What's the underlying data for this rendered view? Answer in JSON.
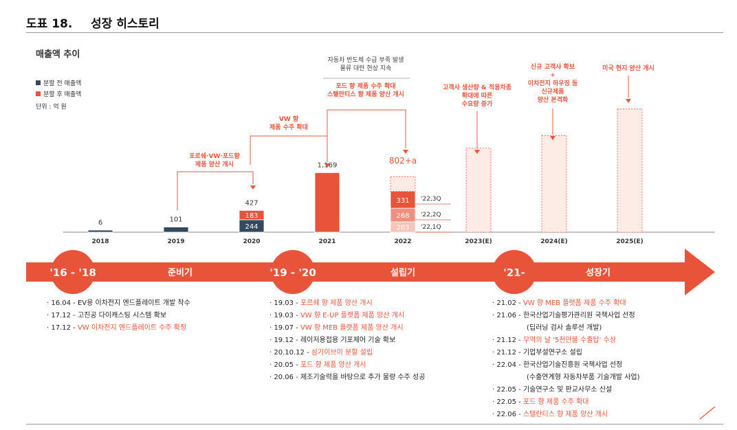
{
  "header": {
    "figure_no": "도표 18.",
    "title": "성장 히스토리"
  },
  "chart_data": {
    "type": "bar",
    "title": "매출액 추이",
    "legend": [
      {
        "name": "분할 전 매출액",
        "color": "#34495e"
      },
      {
        "name": "분할 후 매출액",
        "color": "#e8543a"
      }
    ],
    "unit": "단위 : 억 원",
    "categories": [
      "2018",
      "2019",
      "2020",
      "2021",
      "2022",
      "2023(E)",
      "2024(E)",
      "2025(E)"
    ],
    "totals": [
      "6",
      "101",
      "427",
      "1,169",
      "802+a",
      "",
      "",
      ""
    ],
    "segments": [
      {
        "cat": "2018",
        "color": "dark",
        "value": 6,
        "label": ""
      },
      {
        "cat": "2019",
        "color": "dark",
        "value": 101,
        "label": ""
      },
      {
        "cat": "2020",
        "color": "dark",
        "value": 244,
        "label": "244"
      },
      {
        "cat": "2020",
        "color": "red",
        "value": 183,
        "label": "183"
      },
      {
        "cat": "2021",
        "color": "red",
        "value": 1169,
        "label": ""
      },
      {
        "cat": "2022",
        "color": "q1",
        "value": 203,
        "label": "203"
      },
      {
        "cat": "2022",
        "color": "q2",
        "value": 268,
        "label": "268"
      },
      {
        "cat": "2022",
        "color": "q3",
        "value": 331,
        "label": "331"
      },
      {
        "cat": "2022",
        "color": "future",
        "value": 290,
        "label": ""
      },
      {
        "cat": "2023(E)",
        "color": "future",
        "value": 1650,
        "label": ""
      },
      {
        "cat": "2024(E)",
        "color": "future",
        "value": 1900,
        "label": ""
      },
      {
        "cat": "2025(E)",
        "color": "future",
        "value": 2420,
        "label": ""
      }
    ],
    "quarter_labels": [
      "'22,3Q",
      "'22,2Q",
      "'22,1Q"
    ],
    "annotations": [
      {
        "target": "2020",
        "lines": [
          "포르쉐·VW·포드향",
          "제품 양산 개시"
        ]
      },
      {
        "target": "2021",
        "lines": [
          "VW 향",
          "제품 수주 확대"
        ]
      },
      {
        "target": "2022",
        "lines": [
          "포드 향 제품 수주 확대",
          "스텔란티스 향 제품 양산 개시"
        ],
        "note": [
          "자동차 반도체 수급 부족 발생",
          "물류 대란 현상 지속"
        ]
      },
      {
        "target": "2023(E)",
        "lines": [
          "고객사 생산량 & 적용차종",
          "확대에 따른",
          "수요량 증가"
        ]
      },
      {
        "target": "2024(E)",
        "lines": [
          "신규 고객사 확보",
          "+",
          "이차전지 하우징 등",
          "신규제품",
          "양산 본격화"
        ]
      },
      {
        "target": "2025(E)",
        "lines": [
          "미국 현지 양산 개시"
        ]
      }
    ]
  },
  "timeline": {
    "phases": [
      {
        "period": "'16 - '18",
        "name": "준비기"
      },
      {
        "period": "'19 - '20",
        "name": "설립기"
      },
      {
        "period": "'21-",
        "name": "성장기"
      }
    ],
    "columns": [
      [
        {
          "date": "16.04",
          "text": "EV용 이차전지 엔드플레이트 개발 착수",
          "hl": false
        },
        {
          "date": "17.12",
          "text": "고진공 다이캐스팅 시스템 확보",
          "hl": false
        },
        {
          "date": "17.12",
          "text": "VW 이차전지 엔드플레이트 수주 확정",
          "hl": true
        }
      ],
      [
        {
          "date": "19.03",
          "text": "포르쉐 향 제품 양산 개시",
          "hl": true
        },
        {
          "date": "19.03",
          "text": "VW 향 E-UP 플랫폼 제품 양산 개시",
          "hl": true
        },
        {
          "date": "19.07",
          "text": "VW 향 MEB 플랫폼 제품 양산 개시",
          "hl": true
        },
        {
          "date": "19.12",
          "text": "레이저용접용 기포제어 기술 확보",
          "hl": false
        },
        {
          "date": "20.10.12",
          "text": "삼기이브이 분할 설립",
          "hl": true
        },
        {
          "date": "20.05",
          "text": "포드 향 제품 양산 개시",
          "hl": true
        },
        {
          "date": "20.06",
          "text": "제조기술력을 바탕으로 추가 물량 수주 성공",
          "hl": false
        }
      ],
      [
        {
          "date": "21.02",
          "text": "VW 향 MEB 플랫폼 제품 수주 확대",
          "hl": true
        },
        {
          "date": "21.06",
          "text": "한국산업기술평가관리원 국책사업 선정",
          "hl": false,
          "sub": "(딥러닝 검사 솔루션 개발)"
        },
        {
          "date": "21.12",
          "text": "무역의 날 '5천만불 수출탑' 수상",
          "hl": true
        },
        {
          "date": "21.12",
          "text": "기업부설연구소 설립",
          "hl": false
        },
        {
          "date": "22.04",
          "text": "한국산업기술진흥원 국책사업 선정",
          "hl": false,
          "sub": "(수출연계형 자동차부품 기술개발 사업)"
        },
        {
          "date": "22.05",
          "text": "기술연구소 및 판교사무소 신설",
          "hl": false
        },
        {
          "date": "22.05",
          "text": "포드 향 제품 수주 확대",
          "hl": true
        },
        {
          "date": "22.06",
          "text": "스텔란티스 향 제품 양산 개시",
          "hl": true
        }
      ]
    ]
  },
  "colors": {
    "accent": "#e8543a",
    "dark": "#34495e",
    "future_fill": "#fdebe6"
  }
}
